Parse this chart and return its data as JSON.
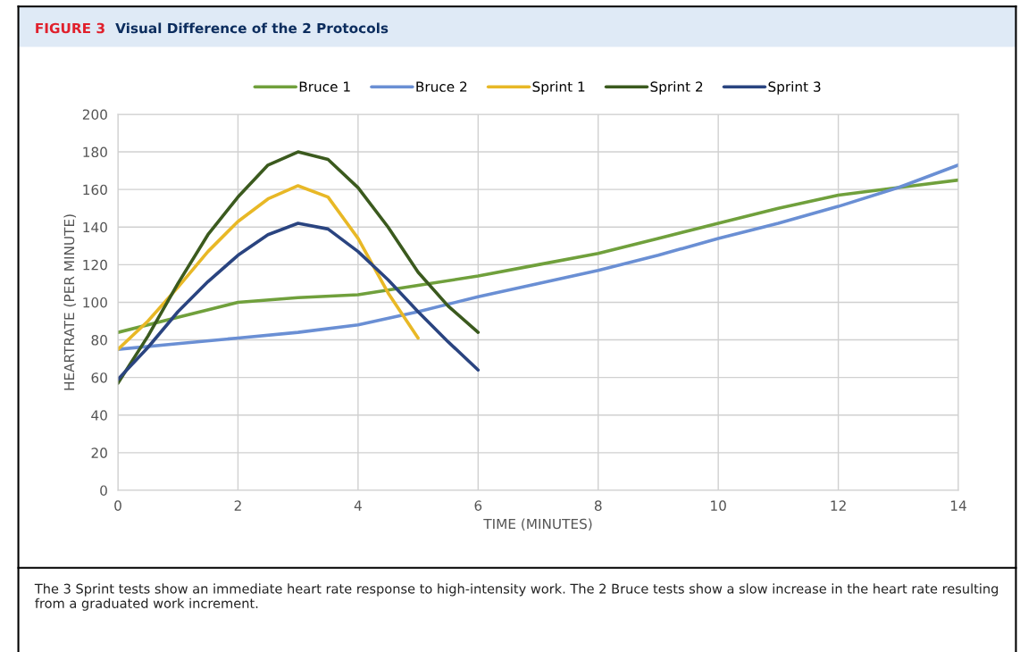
{
  "chart_data": {
    "type": "line",
    "title": "FIGURE 3",
    "subtitle": "Visual Difference of the 2 Protocols",
    "xlabel": "TIME (MINUTES)",
    "ylabel": "HEARTRATE (PER MINUTE)",
    "xlim": [
      0,
      14
    ],
    "xticks": [
      0,
      2,
      4,
      6,
      8,
      10,
      12,
      14
    ],
    "ylim": [
      0,
      200
    ],
    "yticks": [
      0,
      20,
      40,
      60,
      80,
      100,
      120,
      140,
      160,
      180,
      200
    ],
    "grid": true,
    "legend": "top",
    "marker": "none",
    "line_style": "solid",
    "annotations": [
      "The 3 Sprint tests show an immediate heart rate response to high-intensity work. The 2 Bruce tests show a slow increase in the heart rate resulting from a graduated work increment."
    ],
    "series": [
      {
        "name": "Bruce 1",
        "color": "#70a03c",
        "x": [
          0,
          1,
          2,
          3,
          4,
          5,
          6,
          7,
          8,
          9,
          10,
          11,
          12,
          13,
          14
        ],
        "values": [
          84,
          92,
          100,
          102.5,
          104,
          109,
          114,
          120,
          126,
          134,
          142,
          150,
          157,
          161,
          165
        ]
      },
      {
        "name": "Bruce 2",
        "color": "#6a8fd4",
        "x": [
          0,
          1,
          2,
          3,
          4,
          5,
          6,
          7,
          8,
          9,
          10,
          11,
          12,
          13,
          14
        ],
        "values": [
          75,
          78,
          81,
          84,
          88,
          95,
          103,
          110,
          117,
          125,
          134,
          142,
          151,
          161,
          173
        ]
      },
      {
        "name": "Sprint 1",
        "color": "#e8b826",
        "x": [
          0,
          0.5,
          1,
          1.5,
          2,
          2.5,
          3,
          3.5,
          4,
          4.5,
          5
        ],
        "values": [
          75,
          90,
          108,
          127,
          143,
          155,
          162,
          156,
          134,
          105,
          81
        ]
      },
      {
        "name": "Sprint 2",
        "color": "#3b5a1e",
        "x": [
          0,
          0.5,
          1,
          1.5,
          2,
          2.5,
          3,
          3.5,
          4,
          4.5,
          5,
          5.5,
          6
        ],
        "values": [
          57,
          82,
          110,
          136,
          156,
          173,
          180,
          176,
          161,
          140,
          116,
          98,
          84
        ]
      },
      {
        "name": "Sprint 3",
        "color": "#2a4480",
        "x": [
          0,
          0.5,
          1,
          1.5,
          2,
          2.5,
          3,
          3.5,
          4,
          4.5,
          5,
          5.5,
          6
        ],
        "values": [
          59,
          76,
          95,
          111,
          125,
          136,
          142,
          139,
          127,
          112,
          95,
          79,
          64
        ]
      }
    ]
  }
}
